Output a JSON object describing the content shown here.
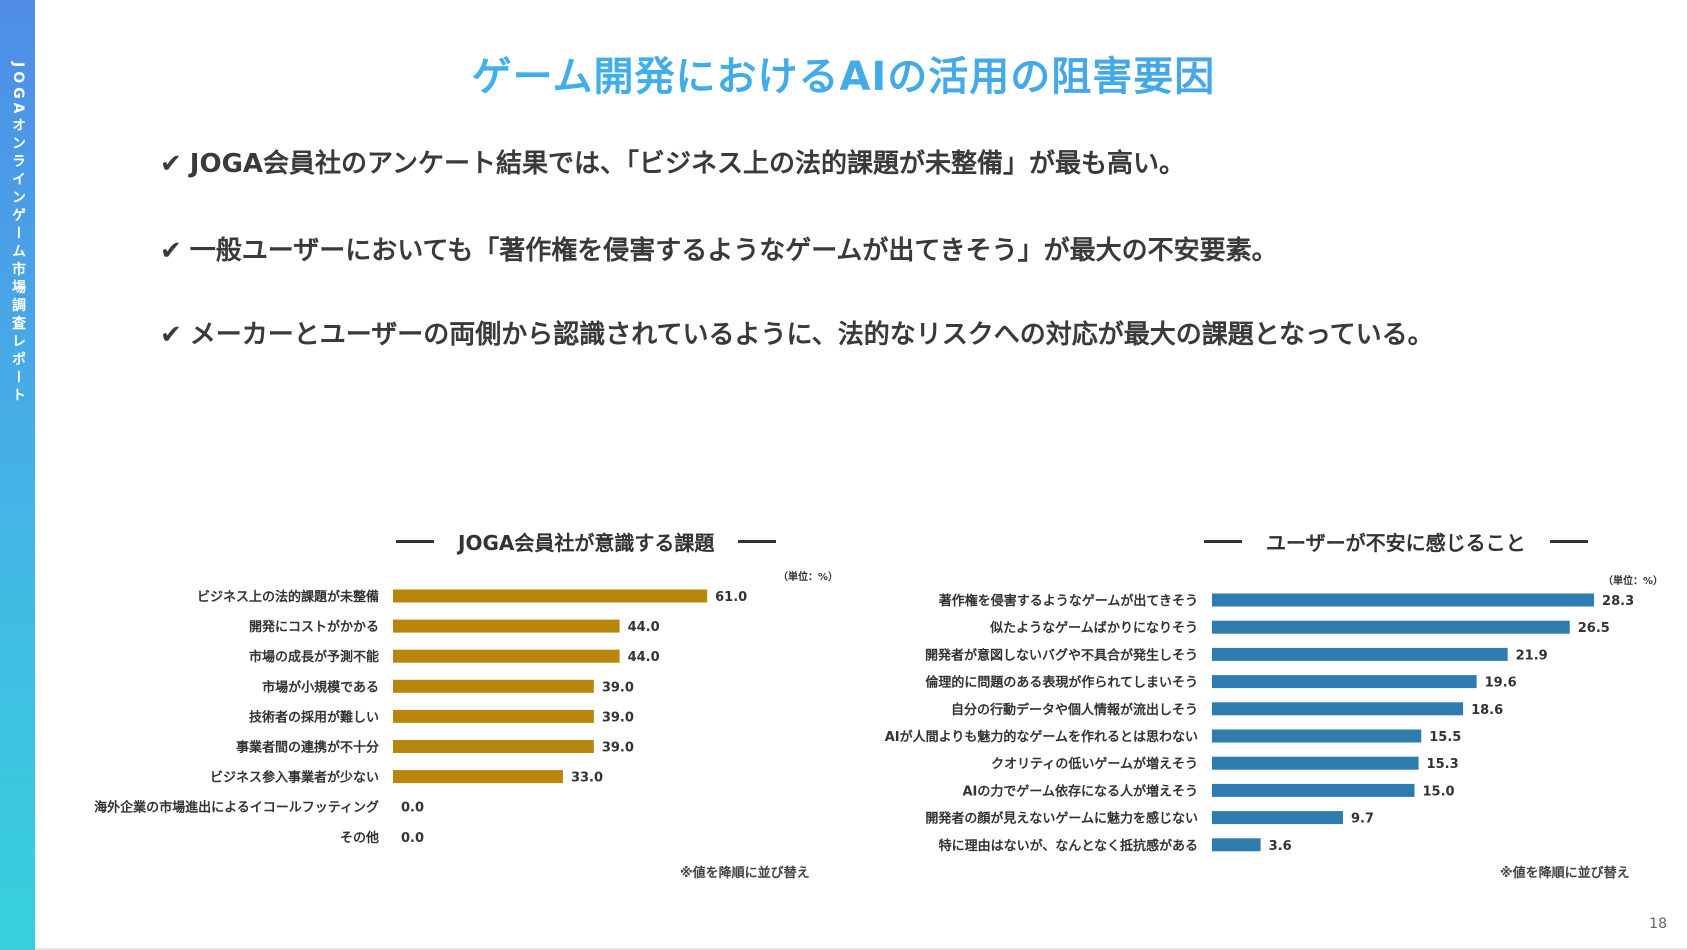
{
  "side_label": "JOGAオンラインゲーム市場調査レポート",
  "title": "ゲーム開発におけるAIの活用の阻害要因",
  "check_mark": "✔",
  "points": [
    "JOGA会員社のアンケート結果では、「ビジネス上の法的課題が未整備」が最も高い。",
    "一般ユーザーにおいても「著作権を侵害するようなゲームが出てきそう」が最大の不安要素。",
    "メーカーとユーザーの両側から認識されているように、法的なリスクへの対応が最大の課題となっている。"
  ],
  "page_number": "18",
  "charts": {
    "left": {
      "heading": "JOGA会員社が意識する課題",
      "unit": "（単位：%）",
      "note": "※値を降順に並び替え"
    },
    "right": {
      "heading": "ユーザーが不安に感じること",
      "unit": "（単位：%）",
      "note": "※値を降順に並び替え"
    }
  },
  "chart_data": [
    {
      "type": "bar",
      "orientation": "horizontal",
      "title": "JOGA会員社が意識する課題",
      "unit": "%",
      "color": "#b8860b",
      "categories": [
        "ビジネス上の法的課題が未整備",
        "開発にコストがかかる",
        "市場の成長が予測不能",
        "市場が小規模である",
        "技術者の採用が難しい",
        "事業者間の連携が不十分",
        "ビジネス参入事業者が少ない",
        "海外企業の市場進出によるイコールフッティング",
        "その他"
      ],
      "values": [
        61.0,
        44.0,
        44.0,
        39.0,
        39.0,
        39.0,
        33.0,
        0.0,
        0.0
      ],
      "value_labels": [
        "61.0",
        "44.0",
        "44.0",
        "39.0",
        "39.0",
        "39.0",
        "33.0",
        "0.0",
        "0.0"
      ],
      "xlim": [
        0,
        100
      ],
      "grid": false
    },
    {
      "type": "bar",
      "orientation": "horizontal",
      "title": "ユーザーが不安に感じること",
      "unit": "%",
      "color": "#2e7bb0",
      "categories": [
        "著作権を侵害するようなゲームが出てきそう",
        "似たようなゲームばかりになりそう",
        "開発者が意図しないバグや不具合が発生しそう",
        "倫理的に問題のある表現が作られてしまいそう",
        "自分の行動データや個人情報が流出しそう",
        "AIが人間よりも魅力的なゲームを作れるとは思わない",
        "クオリティの低いゲームが増えそう",
        "AIの力でゲーム依存になる人が増えそう",
        "開発者の顔が見えないゲームに魅力を感じない",
        "特に理由はないが、なんとなく抵抗感がある"
      ],
      "values": [
        28.3,
        26.5,
        21.9,
        19.6,
        18.6,
        15.5,
        15.3,
        15.0,
        9.7,
        3.6
      ],
      "value_labels": [
        "28.3",
        "26.5",
        "21.9",
        "19.6",
        "18.6",
        "15.5",
        "15.3",
        "15.0",
        "9.7",
        "3.6"
      ],
      "xlim": [
        0,
        30
      ],
      "grid": false
    }
  ]
}
